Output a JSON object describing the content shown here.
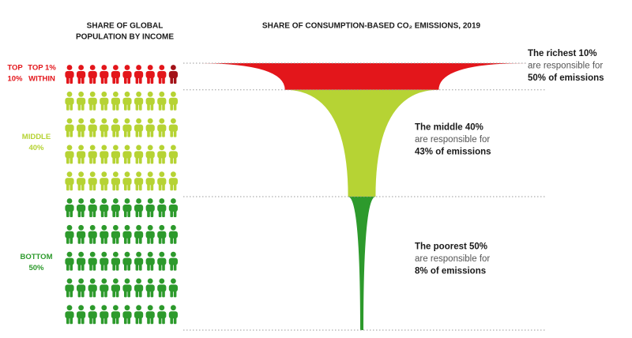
{
  "chart_data": {
    "type": "funnel",
    "population_title": [
      "SHARE OF GLOBAL",
      "POPULATION BY INCOME"
    ],
    "title": "SHARE OF CONSUMPTION-BASED CO₂ EMISSIONS, 2019",
    "groups": [
      {
        "label": [
          "TOP",
          "10%"
        ],
        "population": 10,
        "emissions": 50,
        "color": "#e3161b",
        "annotation": [
          "The richest 10%",
          "are responsible for",
          "50% of emissions"
        ]
      },
      {
        "label": [
          "MIDDLE",
          "40%"
        ],
        "population": 40,
        "emissions": 43,
        "color": "#b6d334",
        "annotation": [
          "The middle 40%",
          "are responsible for",
          "43% of emissions"
        ]
      },
      {
        "label": [
          "BOTTOM",
          "50%"
        ],
        "population": 50,
        "emissions": 8,
        "color": "#2d9a2c",
        "annotation": [
          "The poorest 50%",
          "are responsible for",
          "8% of emissions"
        ]
      }
    ],
    "subgroup": {
      "label": [
        "TOP 1%",
        "WITHIN"
      ],
      "population": 1,
      "color": "#a31218"
    }
  }
}
